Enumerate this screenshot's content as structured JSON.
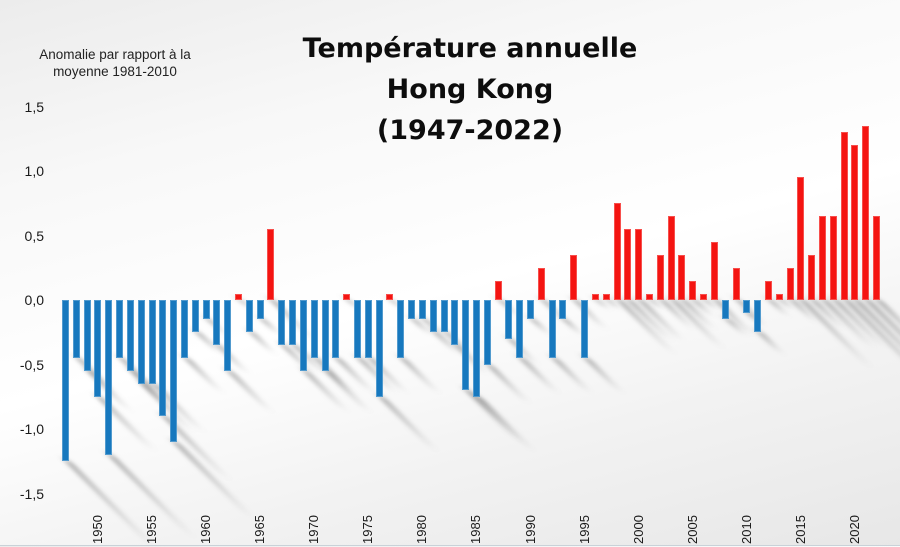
{
  "title": {
    "line1": "Température annuelle",
    "line2": "Hong Kong",
    "line3": "(1947-2022)"
  },
  "subtitle": {
    "line1": "Anomalie par rapport à la",
    "line2": "moyenne 1981-2010"
  },
  "colors": {
    "positive_bar": "#f41411",
    "negative_bar": "#1778be",
    "text": "#1a1a1a"
  },
  "chart_data": {
    "type": "bar",
    "title": "Température annuelle Hong Kong (1947-2022)",
    "ylabel": "Anomalie par rapport à la moyenne 1981-2010",
    "xlabel": "",
    "ylim": [
      -1.5,
      1.5
    ],
    "grid": false,
    "legend": "none",
    "yticks": [
      1.5,
      1.0,
      0.5,
      0.0,
      -0.5,
      -1.0,
      -1.5
    ],
    "ytick_labels": [
      "1,5",
      "1,0",
      "0,5",
      "0,0",
      "-0,5",
      "-1,0",
      "-1,5"
    ],
    "xticks": [
      1950,
      1955,
      1960,
      1965,
      1970,
      1975,
      1980,
      1985,
      1990,
      1995,
      2000,
      2005,
      2010,
      2015,
      2020
    ],
    "start_year": 1947,
    "end_year": 2022,
    "values": [
      -1.25,
      -0.45,
      -0.55,
      -0.75,
      -1.2,
      -0.45,
      -0.55,
      -0.65,
      -0.65,
      -0.9,
      -1.1,
      -0.45,
      -0.25,
      -0.15,
      -0.35,
      -0.55,
      0.05,
      -0.25,
      -0.15,
      0.55,
      -0.35,
      -0.35,
      -0.55,
      -0.45,
      -0.55,
      -0.45,
      0.05,
      -0.45,
      -0.45,
      -0.75,
      0.05,
      -0.45,
      -0.15,
      -0.15,
      -0.25,
      -0.25,
      -0.35,
      -0.7,
      -0.75,
      -0.5,
      0.15,
      -0.3,
      -0.45,
      -0.15,
      0.25,
      -0.45,
      -0.15,
      0.35,
      -0.45,
      0.05,
      0.05,
      0.75,
      0.55,
      0.55,
      0.05,
      0.35,
      0.65,
      0.35,
      0.15,
      0.05,
      0.45,
      -0.15,
      0.25,
      -0.1,
      -0.25,
      0.15,
      0.05,
      0.25,
      0.95,
      0.35,
      0.65,
      0.65,
      1.3,
      1.2,
      1.35,
      0.65
    ]
  }
}
